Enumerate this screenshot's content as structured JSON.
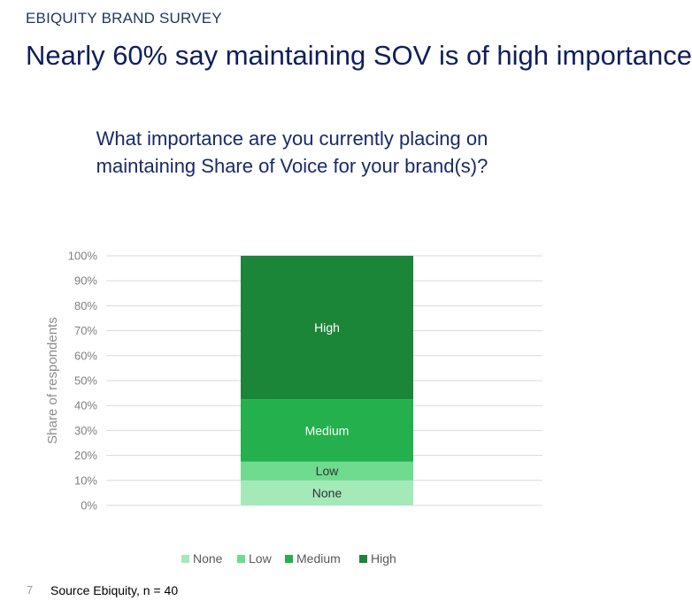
{
  "header": {
    "label": "EBIQUITY BRAND SURVEY"
  },
  "title": "Nearly 60% say maintaining SOV is of high importance",
  "question": "What importance are you currently placing on maintaining Share of Voice for your brand(s)?",
  "footer": {
    "slide_number": "7",
    "source": "Source Ebiquity, n = 40"
  },
  "colors": {
    "None": "#a4eab8",
    "Low": "#6fdb8e",
    "Medium": "#23b04d",
    "High": "#1b8538"
  },
  "chart_data": {
    "type": "bar",
    "stacked": true,
    "ylabel": "Share of respondents",
    "ylim": [
      0,
      100
    ],
    "yticks": [
      "0%",
      "10%",
      "20%",
      "30%",
      "40%",
      "50%",
      "60%",
      "70%",
      "80%",
      "90%",
      "100%"
    ],
    "grid": true,
    "legend": "bottom",
    "series": [
      {
        "name": "None",
        "values": [
          10
        ]
      },
      {
        "name": "Low",
        "values": [
          7.5
        ]
      },
      {
        "name": "Medium",
        "values": [
          25
        ]
      },
      {
        "name": "High",
        "values": [
          57.5
        ]
      }
    ]
  }
}
